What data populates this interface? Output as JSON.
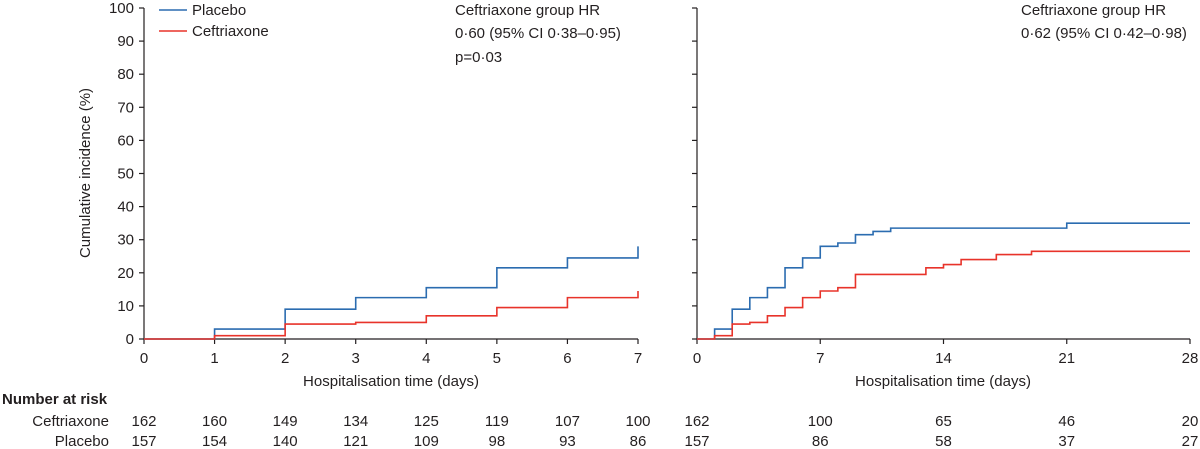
{
  "chart_data": [
    {
      "type": "line",
      "step": true,
      "title": "",
      "xlabel": "Hospitalisation time (days)",
      "ylabel": "Cumulative incidence (%)",
      "xlim": [
        0,
        7
      ],
      "ylim": [
        0,
        100
      ],
      "xticks": [
        0,
        1,
        2,
        3,
        4,
        5,
        6,
        7
      ],
      "yticks": [
        0,
        10,
        20,
        30,
        40,
        50,
        60,
        70,
        80,
        90,
        100
      ],
      "legend": {
        "placement": "top-left",
        "entries": [
          "Placebo",
          "Ceftriaxone"
        ]
      },
      "annotation": [
        "Ceftriaxone group HR",
        "0·60 (95% CI 0·38–0·95)",
        "p=0·03"
      ],
      "series": [
        {
          "name": "Placebo",
          "color": "#2b6cb0",
          "x": [
            0,
            1,
            2,
            3,
            4,
            5,
            6,
            7,
            7
          ],
          "y": [
            0,
            3,
            9,
            12.5,
            15.5,
            21.5,
            24.5,
            24.5,
            28
          ]
        },
        {
          "name": "Ceftriaxone",
          "color": "#e8332a",
          "x": [
            0,
            1,
            2,
            3,
            4,
            5,
            6,
            7,
            7
          ],
          "y": [
            0,
            1,
            4.5,
            5,
            7,
            9.5,
            12.5,
            12.5,
            14.5
          ]
        }
      ],
      "risk_table": {
        "header": "Number at risk",
        "rows": [
          {
            "label": "Ceftriaxone",
            "values": [
              "162",
              "160",
              "149",
              "134",
              "125",
              "119",
              "107",
              "100"
            ]
          },
          {
            "label": "Placebo",
            "values": [
              "157",
              "154",
              "140",
              "121",
              "109",
              "98",
              "93",
              "86"
            ]
          }
        ]
      }
    },
    {
      "type": "line",
      "step": true,
      "title": "",
      "xlabel": "Hospitalisation time (days)",
      "ylabel": "",
      "xlim": [
        0,
        28
      ],
      "ylim": [
        0,
        100
      ],
      "xticks": [
        0,
        7,
        14,
        21,
        28
      ],
      "annotation": [
        "Ceftriaxone group HR",
        "0·62 (95% CI 0·42–0·98)"
      ],
      "series": [
        {
          "name": "Placebo",
          "color": "#2b6cb0",
          "x": [
            0,
            1,
            2,
            3,
            4,
            5,
            6,
            7,
            8,
            9,
            10,
            11,
            21,
            28
          ],
          "y": [
            0,
            3,
            9,
            12.5,
            15.5,
            21.5,
            24.5,
            28,
            29,
            31.5,
            32.5,
            33.5,
            35,
            35
          ]
        },
        {
          "name": "Ceftriaxone",
          "color": "#e8332a",
          "x": [
            0,
            1,
            2,
            3,
            4,
            5,
            6,
            7,
            8,
            9,
            13,
            14,
            15,
            17,
            19,
            28
          ],
          "y": [
            0,
            1,
            4.5,
            5,
            7,
            9.5,
            12.5,
            14.5,
            15.5,
            19.5,
            21.5,
            22.5,
            24,
            25.5,
            26.5,
            26.5
          ]
        }
      ],
      "risk_table": {
        "ticks": [
          0,
          7,
          14,
          21,
          28
        ],
        "rows": [
          {
            "label": "Ceftriaxone",
            "values": [
              "162",
              "100",
              "65",
              "46",
              "20"
            ]
          },
          {
            "label": "Placebo",
            "values": [
              "157",
              "86",
              "58",
              "37",
              "27"
            ]
          }
        ]
      }
    }
  ]
}
